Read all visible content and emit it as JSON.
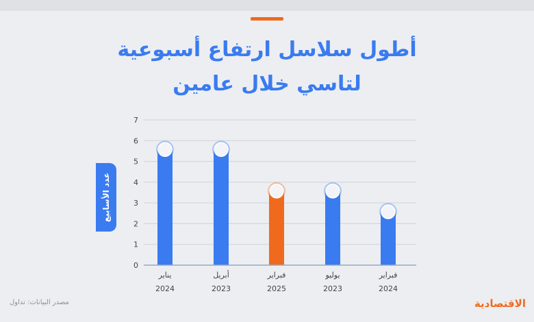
{
  "title_line1": "أطول سلاسل ارتفاع أسبوعية",
  "title_line2": "لتاسي خلال عامين",
  "source": "مصدر البيانات: تداول",
  "brand": "الاقتصادية",
  "colors": {
    "primary": "#3a7bf0",
    "highlight": "#f06a1d",
    "grid": "#cfd3da",
    "axis": "#9aa6c4",
    "text": "#444444"
  },
  "chart_data": {
    "type": "bar",
    "title": "أطول سلاسل ارتفاع أسبوعية لتاسي خلال عامين",
    "ylabel": "عدد الأسابيع",
    "ylim": [
      0,
      7
    ],
    "yticks": [
      0,
      1,
      2,
      3,
      4,
      5,
      6,
      7
    ],
    "grid": true,
    "categories": [
      {
        "month": "يناير",
        "year": "2024"
      },
      {
        "month": "أبريل",
        "year": "2023"
      },
      {
        "month": "فبراير",
        "year": "2025"
      },
      {
        "month": "يوليو",
        "year": "2023"
      },
      {
        "month": "فبراير",
        "year": "2024"
      }
    ],
    "values": [
      6,
      6,
      4,
      4,
      3
    ],
    "highlight_index": 2
  }
}
